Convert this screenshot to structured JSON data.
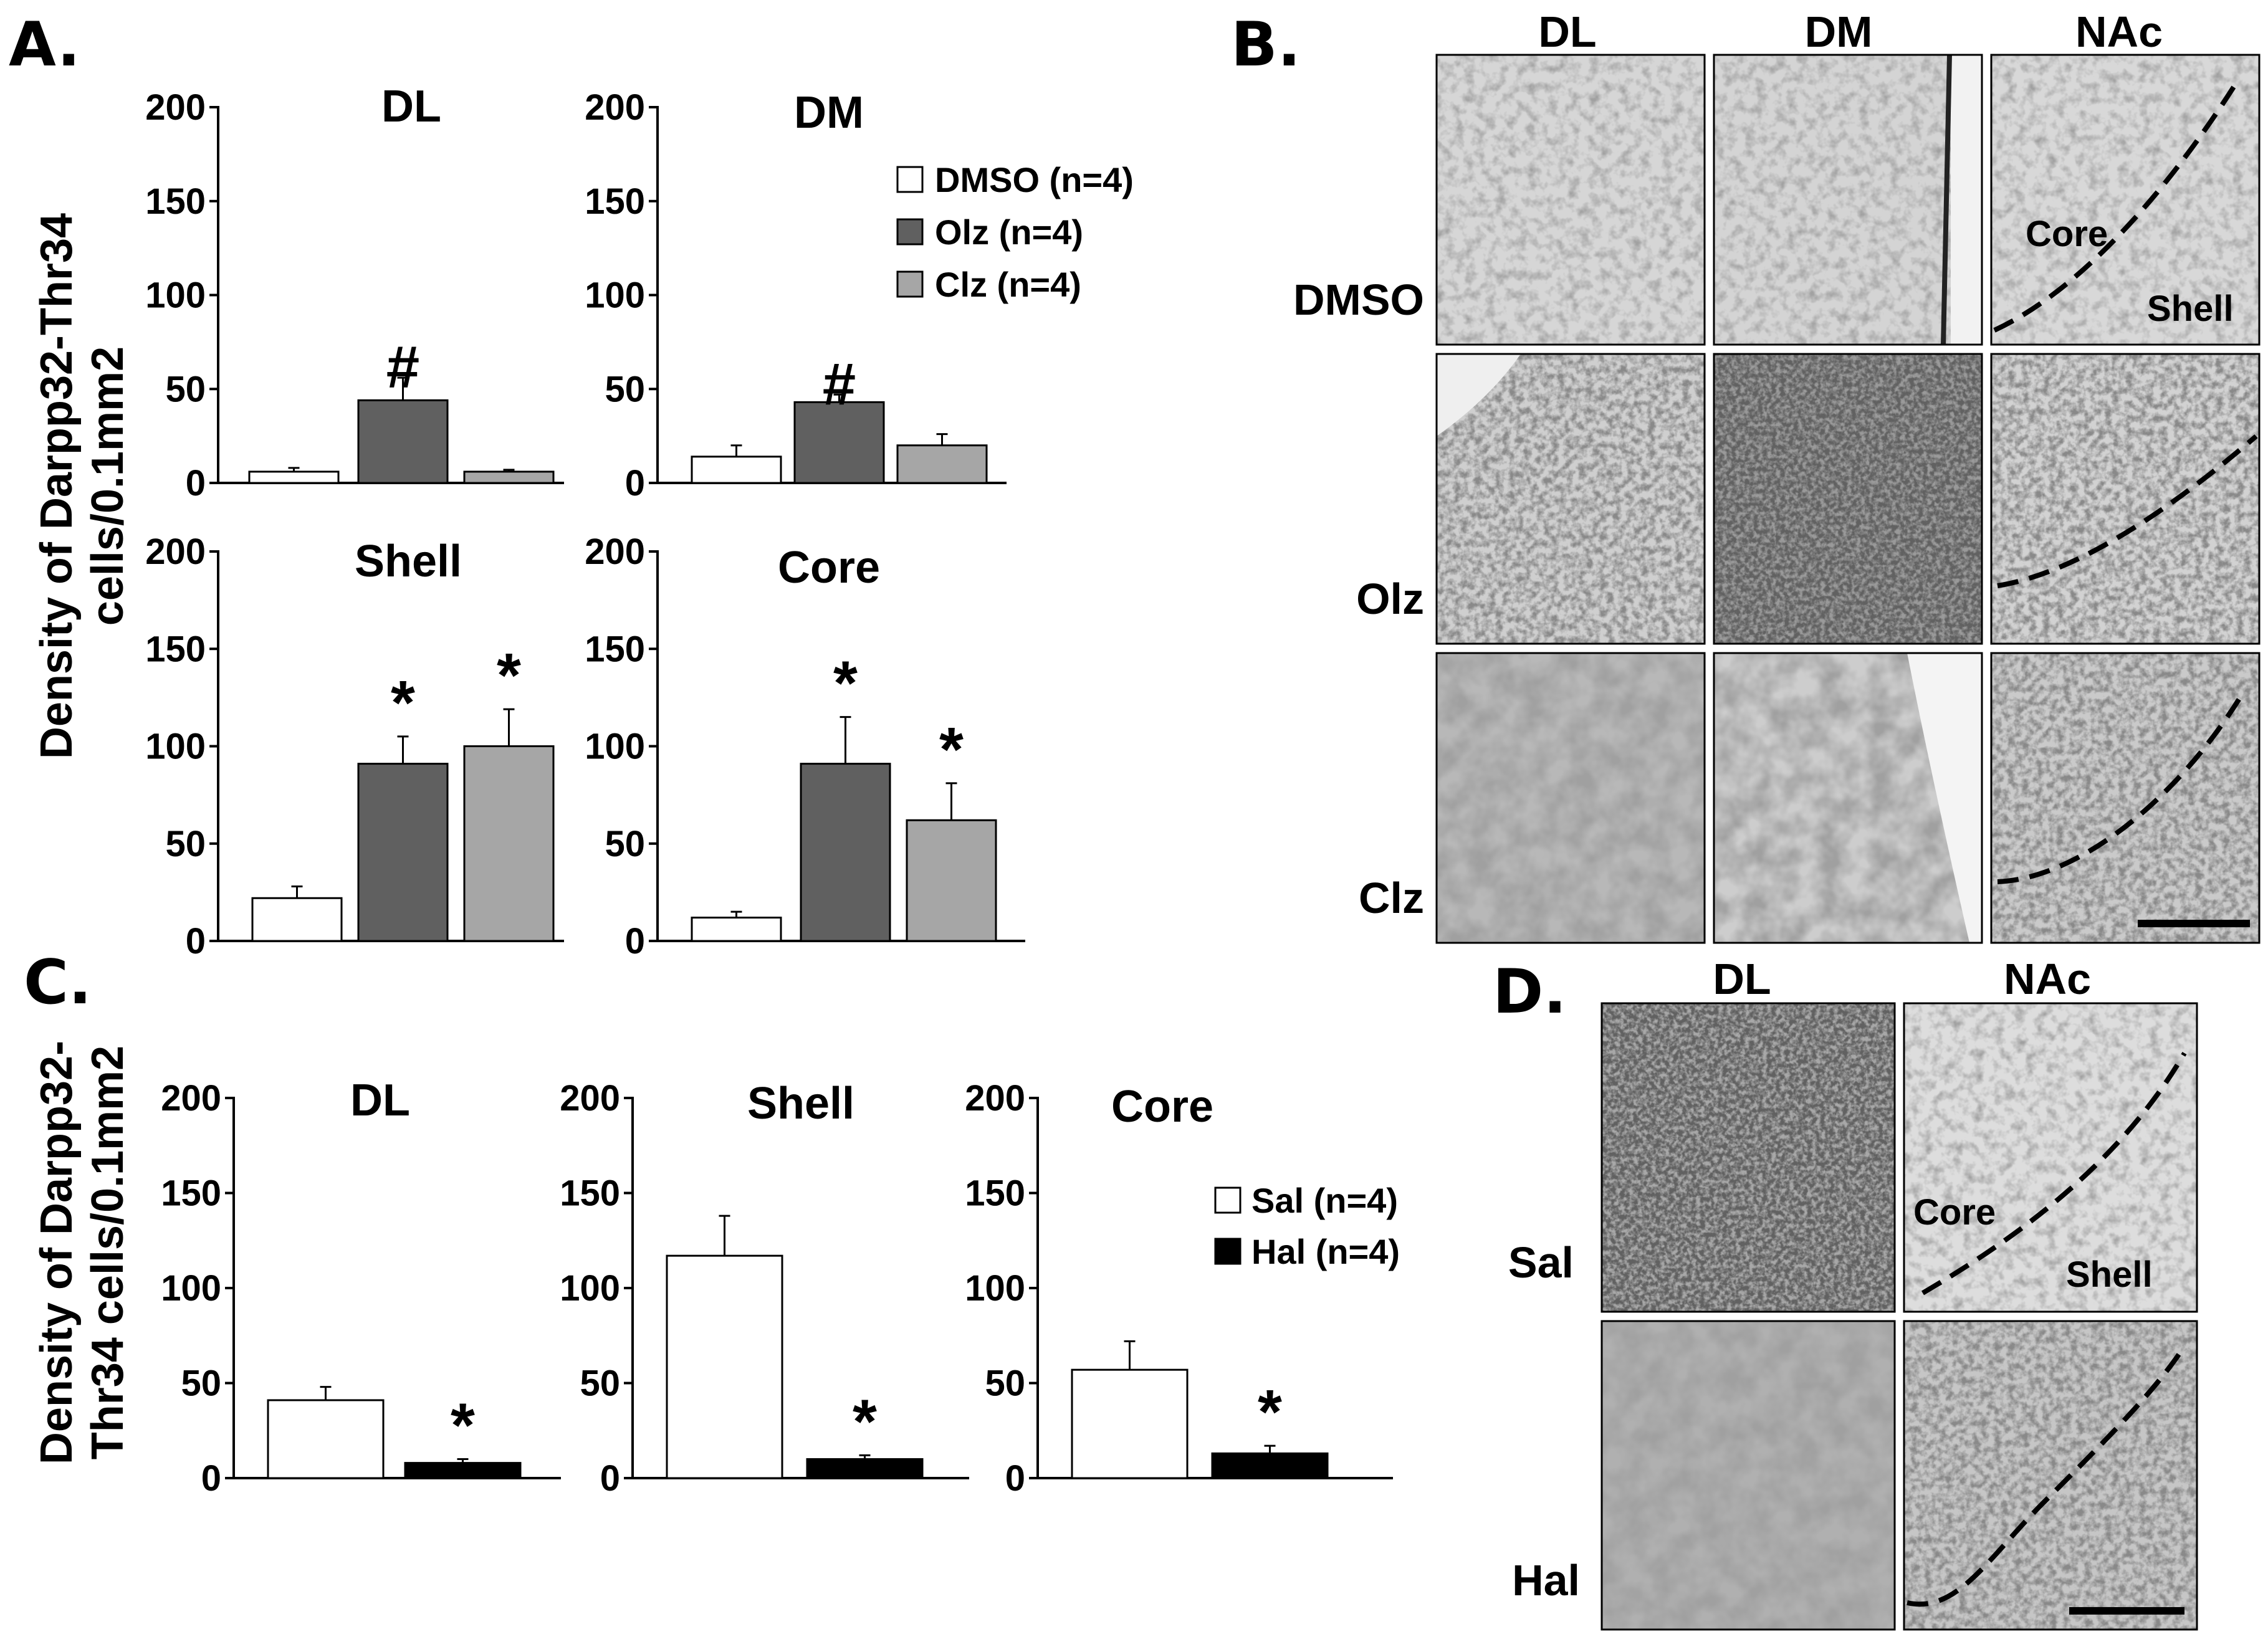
{
  "panels": {
    "A": "A.",
    "B": "B.",
    "C": "C.",
    "D": "D."
  },
  "colors": {
    "DMSO": "#ffffff",
    "Olz": "#606060",
    "Clz": "#a6a6a6",
    "Sal": "#ffffff",
    "Hal": "#000000"
  },
  "chart_data": [
    {
      "panel": "A",
      "type": "bar",
      "title": "DL",
      "ylabel": "Density of Darpp32-Thr34 cells/0.1mm2",
      "ylim": [
        0,
        200
      ],
      "yticks": [
        0,
        50,
        100,
        150,
        200
      ],
      "categories": [
        "DMSO (n=4)",
        "Olz (n=4)",
        "Clz (n=4)"
      ],
      "values": [
        6,
        44,
        6
      ],
      "errors": [
        2,
        12,
        1
      ],
      "significance": [
        "",
        "#",
        ""
      ]
    },
    {
      "panel": "A",
      "type": "bar",
      "title": "DM",
      "ylim": [
        0,
        200
      ],
      "yticks": [
        0,
        50,
        100,
        150,
        200
      ],
      "categories": [
        "DMSO (n=4)",
        "Olz (n=4)",
        "Clz (n=4)"
      ],
      "values": [
        14,
        43,
        20
      ],
      "errors": [
        6,
        4,
        6
      ],
      "significance": [
        "",
        "#",
        ""
      ]
    },
    {
      "panel": "A",
      "type": "bar",
      "title": "Shell",
      "ylim": [
        0,
        200
      ],
      "yticks": [
        0,
        50,
        100,
        150,
        200
      ],
      "categories": [
        "DMSO (n=4)",
        "Olz (n=4)",
        "Clz (n=4)"
      ],
      "values": [
        22,
        91,
        100
      ],
      "errors": [
        6,
        14,
        19
      ],
      "significance": [
        "",
        "*",
        "*"
      ]
    },
    {
      "panel": "A",
      "type": "bar",
      "title": "Core",
      "ylim": [
        0,
        200
      ],
      "yticks": [
        0,
        50,
        100,
        150,
        200
      ],
      "categories": [
        "DMSO (n=4)",
        "Olz (n=4)",
        "Clz (n=4)"
      ],
      "values": [
        12,
        91,
        62
      ],
      "errors": [
        3,
        24,
        19
      ],
      "significance": [
        "",
        "*",
        "*"
      ]
    },
    {
      "panel": "C",
      "type": "bar",
      "title": "DL",
      "ylabel": "Density of Darpp32-Thr34 cells/0.1mm2",
      "ylim": [
        0,
        200
      ],
      "yticks": [
        0,
        50,
        100,
        150,
        200
      ],
      "categories": [
        "Sal (n=4)",
        "Hal (n=4)"
      ],
      "values": [
        41,
        8
      ],
      "errors": [
        7,
        2
      ],
      "significance": [
        "",
        "*"
      ]
    },
    {
      "panel": "C",
      "type": "bar",
      "title": "Shell",
      "ylim": [
        0,
        200
      ],
      "yticks": [
        0,
        50,
        100,
        150,
        200
      ],
      "categories": [
        "Sal (n=4)",
        "Hal (n=4)"
      ],
      "values": [
        117,
        10
      ],
      "errors": [
        21,
        2
      ],
      "significance": [
        "",
        "*"
      ]
    },
    {
      "panel": "C",
      "type": "bar",
      "title": "Core",
      "ylim": [
        0,
        200
      ],
      "yticks": [
        0,
        50,
        100,
        150,
        200
      ],
      "categories": [
        "Sal (n=4)",
        "Hal (n=4)"
      ],
      "values": [
        57,
        13
      ],
      "errors": [
        15,
        4
      ],
      "significance": [
        "",
        "*"
      ]
    }
  ],
  "legends": {
    "A": [
      "DMSO (n=4)",
      "Olz (n=4)",
      "Clz (n=4)"
    ],
    "C": [
      "Sal (n=4)",
      "Hal (n=4)"
    ]
  },
  "ylabels": {
    "A_line1": "Density of Darpp32-Thr34",
    "A_line2": "cells/0.1mm2",
    "C_line1": "Density of Darpp32-",
    "C_line2": "Thr34 cells/0.1mm2"
  },
  "micrographs": {
    "B": {
      "columns": [
        "DL",
        "DM",
        "NAc"
      ],
      "rows": [
        "DMSO",
        "Olz",
        "Clz"
      ],
      "region_labels": [
        "Core",
        "Shell"
      ]
    },
    "D": {
      "columns": [
        "DL",
        "NAc"
      ],
      "rows": [
        "Sal",
        "Hal"
      ],
      "region_labels": [
        "Core",
        "Shell"
      ]
    }
  }
}
